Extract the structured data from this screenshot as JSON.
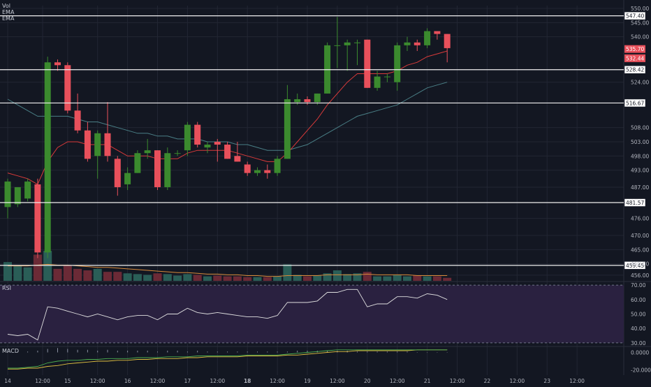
{
  "legend": {
    "volume": "Vol",
    "ema_fast": "EMA",
    "ema_slow": "EMA",
    "rsi": "RSI",
    "macd": "MACD"
  },
  "colors": {
    "background": "#131722",
    "up": "#3b8a2e",
    "down": "#e8505b",
    "vol_up": "#2a5e57",
    "vol_down": "#6b2a36",
    "ema_fast": "#d93a3a",
    "ema_slow": "#4a7f86",
    "vol_ma": "#d88a3a",
    "rsi_line": "#e0e0e0",
    "rsi_band": "#2a2140",
    "macd_line": "#4caf50",
    "macd_signal": "#e0c040",
    "grid": "#222633",
    "hline": "#f0f0f0"
  },
  "chart_data": {
    "type": "candlestick",
    "price_axis": {
      "ylim": [
        454,
        551
      ],
      "ticks": [
        550.0,
        545.0,
        540.0,
        534.0,
        529.0,
        524.0,
        519.0,
        513.0,
        508.0,
        503.0,
        498.0,
        493.0,
        487.0,
        481.57,
        476.0,
        470.0,
        465.0,
        460.0,
        456.0
      ],
      "tick_labels": [
        "550.00",
        "545.00",
        "540.00",
        "",
        "",
        "524.00",
        "",
        "",
        "508.00",
        "503.00",
        "498.00",
        "493.00",
        "487.00",
        "",
        "476.00",
        "470.00",
        "465.00",
        "460.00",
        "456.00"
      ],
      "labels": [
        "550.00",
        "545.00",
        "540.00",
        "524.00",
        "508.00",
        "503.00",
        "498.00",
        "493.00",
        "487.00",
        "476.00",
        "470.00",
        "465.00",
        "460.00",
        "456.00"
      ],
      "values": [
        550,
        545,
        540,
        524,
        508,
        503,
        498,
        493,
        487,
        476,
        470,
        465,
        460,
        456
      ]
    },
    "horizontal_levels": [
      {
        "value": 547.4,
        "label": "547.40"
      },
      {
        "value": 528.42,
        "label": "528.42"
      },
      {
        "value": 516.67,
        "label": "516.67"
      },
      {
        "value": 481.57,
        "label": "481.57"
      },
      {
        "value": 459.45,
        "label": "459.45"
      }
    ],
    "price_badges": [
      {
        "value": 535.7,
        "label": "535.70",
        "color": "#e8505b"
      },
      {
        "value": 532.44,
        "label": "532.44",
        "color": "#e8505b"
      }
    ],
    "x_labels": [
      {
        "i": 0,
        "label": "14",
        "bold": false
      },
      {
        "i": 3.5,
        "label": "12:00",
        "bold": false
      },
      {
        "i": 6,
        "label": "15",
        "bold": false
      },
      {
        "i": 9,
        "label": "12:00",
        "bold": false
      },
      {
        "i": 12,
        "label": "16",
        "bold": false
      },
      {
        "i": 15,
        "label": "12:00",
        "bold": false
      },
      {
        "i": 18,
        "label": "17",
        "bold": false
      },
      {
        "i": 21,
        "label": "12:00",
        "bold": false
      },
      {
        "i": 24,
        "label": "18",
        "bold": true
      },
      {
        "i": 27,
        "label": "12:00",
        "bold": false
      },
      {
        "i": 30,
        "label": "19",
        "bold": false
      },
      {
        "i": 33,
        "label": "12:00",
        "bold": false
      },
      {
        "i": 36,
        "label": "20",
        "bold": false
      },
      {
        "i": 39,
        "label": "12:00",
        "bold": false
      },
      {
        "i": 42,
        "label": "21",
        "bold": false
      },
      {
        "i": 45,
        "label": "12:00",
        "bold": false
      },
      {
        "i": 48,
        "label": "22",
        "bold": false
      },
      {
        "i": 51,
        "label": "12:00",
        "bold": false
      },
      {
        "i": 54,
        "label": "23",
        "bold": false
      },
      {
        "i": 57,
        "label": "12:00",
        "bold": false
      }
    ],
    "candles": [
      {
        "o": 480,
        "h": 490,
        "l": 476,
        "c": 489
      },
      {
        "o": 481,
        "h": 487,
        "l": 480,
        "c": 487
      },
      {
        "o": 483,
        "h": 490,
        "l": 482,
        "c": 489
      },
      {
        "o": 488,
        "h": 490,
        "l": 462,
        "c": 464
      },
      {
        "o": 464,
        "h": 533,
        "l": 462,
        "c": 531
      },
      {
        "o": 531,
        "h": 532,
        "l": 528,
        "c": 530
      },
      {
        "o": 530,
        "h": 531,
        "l": 513,
        "c": 514
      },
      {
        "o": 514,
        "h": 520,
        "l": 506,
        "c": 507
      },
      {
        "o": 507,
        "h": 510,
        "l": 496,
        "c": 497
      },
      {
        "o": 498,
        "h": 507,
        "l": 490,
        "c": 506
      },
      {
        "o": 506,
        "h": 517,
        "l": 496,
        "c": 498
      },
      {
        "o": 497,
        "h": 498,
        "l": 484,
        "c": 487
      },
      {
        "o": 488,
        "h": 494,
        "l": 486,
        "c": 492
      },
      {
        "o": 492,
        "h": 500,
        "l": 492,
        "c": 499
      },
      {
        "o": 499,
        "h": 504,
        "l": 497,
        "c": 500
      },
      {
        "o": 500,
        "h": 500,
        "l": 486,
        "c": 487
      },
      {
        "o": 487,
        "h": 501,
        "l": 486,
        "c": 499
      },
      {
        "o": 499,
        "h": 500,
        "l": 498,
        "c": 499
      },
      {
        "o": 500,
        "h": 510,
        "l": 498,
        "c": 509
      },
      {
        "o": 509,
        "h": 510,
        "l": 501,
        "c": 502
      },
      {
        "o": 501,
        "h": 503,
        "l": 499,
        "c": 502
      },
      {
        "o": 503,
        "h": 504,
        "l": 496,
        "c": 502
      },
      {
        "o": 502,
        "h": 503,
        "l": 497,
        "c": 497
      },
      {
        "o": 498,
        "h": 503,
        "l": 496,
        "c": 496
      },
      {
        "o": 495,
        "h": 496,
        "l": 491,
        "c": 492
      },
      {
        "o": 492,
        "h": 494,
        "l": 491,
        "c": 493
      },
      {
        "o": 493,
        "h": 495,
        "l": 490,
        "c": 492
      },
      {
        "o": 492,
        "h": 498,
        "l": 491,
        "c": 497
      },
      {
        "o": 497,
        "h": 523,
        "l": 497,
        "c": 518
      },
      {
        "o": 517,
        "h": 520,
        "l": 516,
        "c": 518
      },
      {
        "o": 518,
        "h": 519,
        "l": 516,
        "c": 517
      },
      {
        "o": 517,
        "h": 520,
        "l": 516,
        "c": 520
      },
      {
        "o": 520,
        "h": 538,
        "l": 520,
        "c": 537
      },
      {
        "o": 537,
        "h": 547,
        "l": 529,
        "c": 537
      },
      {
        "o": 537,
        "h": 539,
        "l": 528,
        "c": 538
      },
      {
        "o": 538,
        "h": 539,
        "l": 530,
        "c": 538
      },
      {
        "o": 539,
        "h": 539,
        "l": 522,
        "c": 522
      },
      {
        "o": 522,
        "h": 528,
        "l": 521,
        "c": 526
      },
      {
        "o": 526,
        "h": 527,
        "l": 524,
        "c": 526
      },
      {
        "o": 524,
        "h": 538,
        "l": 521,
        "c": 537
      },
      {
        "o": 537,
        "h": 540,
        "l": 535,
        "c": 538
      },
      {
        "o": 538,
        "h": 539,
        "l": 535,
        "c": 537
      },
      {
        "o": 537,
        "h": 543,
        "l": 536,
        "c": 542
      },
      {
        "o": 542,
        "h": 542,
        "l": 539,
        "c": 541
      },
      {
        "o": 541,
        "h": 541,
        "l": 531,
        "c": 536
      }
    ],
    "ema_fast": [
      492,
      491,
      490,
      488,
      496,
      501,
      503,
      503,
      502,
      502,
      502,
      500,
      498,
      498,
      498,
      497,
      497,
      497,
      499,
      500,
      500,
      500,
      500,
      499,
      498,
      497,
      496,
      496,
      499,
      503,
      507,
      511,
      516,
      520,
      524,
      527,
      527,
      527,
      527,
      528,
      530,
      531,
      533,
      534,
      535
    ],
    "ema_slow": [
      518,
      516,
      514,
      512,
      512,
      512,
      512,
      511,
      510,
      510,
      509,
      508,
      507,
      506,
      506,
      505,
      505,
      504,
      504,
      504,
      503,
      503,
      503,
      502,
      502,
      501,
      500,
      500,
      500,
      501,
      502,
      504,
      506,
      508,
      510,
      512,
      513,
      514,
      515,
      516,
      518,
      520,
      522,
      523,
      524
    ],
    "volume": [
      25,
      20,
      18,
      35,
      40,
      16,
      20,
      16,
      14,
      16,
      12,
      12,
      10,
      9,
      8,
      10,
      9,
      7,
      9,
      8,
      6,
      7,
      6,
      6,
      5,
      5,
      5,
      6,
      22,
      8,
      6,
      7,
      10,
      14,
      9,
      10,
      12,
      6,
      6,
      8,
      6,
      7,
      6,
      6,
      4
    ],
    "volume_ma": [
      20,
      20,
      20,
      21,
      22,
      21,
      21,
      20,
      19,
      18,
      18,
      17,
      16,
      15,
      14,
      13,
      12,
      11,
      11,
      10,
      9,
      9,
      8,
      8,
      7,
      7,
      6,
      6,
      7,
      7,
      7,
      7,
      8,
      8,
      8,
      8,
      9,
      8,
      8,
      8,
      8,
      7,
      7,
      7,
      7
    ],
    "volume_ylim": [
      0,
      42
    ],
    "rsi": {
      "ylim": [
        28,
        72
      ],
      "ticks": [
        70,
        60,
        50,
        40,
        30
      ],
      "tick_labels": [
        "70.00",
        "60.00",
        "50.00",
        "40.00",
        "30.00"
      ],
      "band": [
        30,
        70
      ],
      "values": [
        36,
        35,
        36,
        32,
        55,
        54,
        52,
        50,
        48,
        50,
        48,
        46,
        48,
        49,
        49,
        46,
        50,
        50,
        54,
        51,
        50,
        51,
        50,
        49,
        48,
        48,
        47,
        49,
        58,
        58,
        58,
        59,
        65,
        65,
        67,
        67,
        55,
        57,
        57,
        62,
        62,
        61,
        64,
        63,
        60
      ]
    },
    "macd": {
      "ylim": [
        -26,
        6
      ],
      "ticks": [
        0,
        -20
      ],
      "tick_labels": [
        "0.0000",
        "-20.0000"
      ],
      "macd": [
        -18,
        -18,
        -17,
        -16,
        -12,
        -10,
        -9,
        -9,
        -8,
        -8,
        -7,
        -7,
        -7,
        -6,
        -6,
        -6,
        -5,
        -5,
        -5,
        -4,
        -4,
        -4,
        -4,
        -4,
        -3,
        -3,
        -3,
        -3,
        -2,
        -1,
        0,
        1,
        2,
        3,
        3,
        3,
        3,
        3,
        3,
        3,
        3,
        3,
        3,
        3,
        3
      ],
      "signal": [
        -19,
        -19,
        -18,
        -18,
        -16,
        -15,
        -13,
        -12,
        -11,
        -10,
        -10,
        -9,
        -9,
        -8,
        -8,
        -7,
        -7,
        -7,
        -6,
        -6,
        -5,
        -5,
        -5,
        -5,
        -4,
        -4,
        -4,
        -4,
        -3,
        -3,
        -2,
        -1,
        0,
        1,
        1,
        2,
        2,
        2,
        2,
        2,
        2,
        3,
        3,
        3,
        3
      ],
      "histogram": [
        1,
        1,
        1,
        2,
        4,
        5,
        4,
        3,
        3,
        2,
        3,
        2,
        2,
        2,
        2,
        1,
        2,
        2,
        1,
        2,
        1,
        1,
        1,
        1,
        1,
        1,
        1,
        1,
        1,
        2,
        2,
        2,
        2,
        2,
        2,
        1,
        1,
        1,
        1,
        1,
        1,
        0,
        0,
        0,
        0
      ]
    }
  }
}
